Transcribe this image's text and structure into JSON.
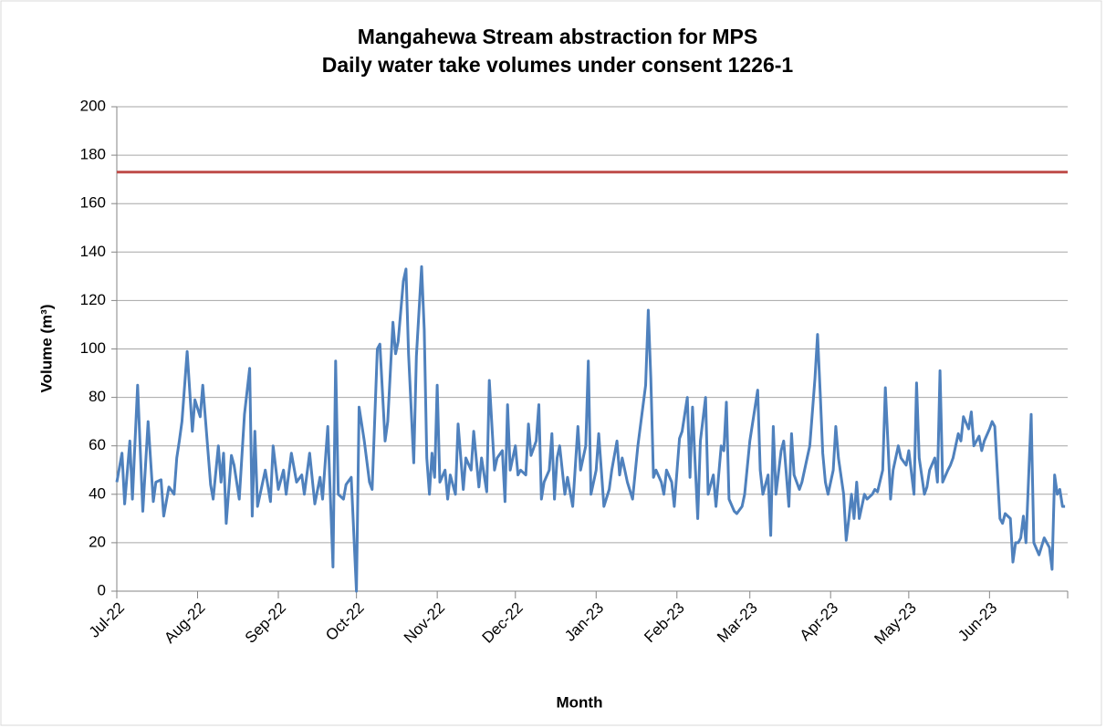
{
  "chart_data": {
    "type": "line",
    "title": "Mangahewa Stream abstraction for MPS",
    "subtitle": "Daily water take volumes under consent 1226-1",
    "y_label": "Volume (m³)",
    "x_label": "Month",
    "xlim": [
      0,
      365
    ],
    "xticks": [
      {
        "value": 0,
        "label": "Jul-22"
      },
      {
        "value": 31,
        "label": "Aug-22"
      },
      {
        "value": 62,
        "label": "Sep-22"
      },
      {
        "value": 92,
        "label": "Oct-22"
      },
      {
        "value": 123,
        "label": "Nov-22"
      },
      {
        "value": 153,
        "label": "Dec-22"
      },
      {
        "value": 184,
        "label": "Jan-23"
      },
      {
        "value": 215,
        "label": "Feb-23"
      },
      {
        "value": 243,
        "label": "Mar-23"
      },
      {
        "value": 274,
        "label": "Apr-23"
      },
      {
        "value": 304,
        "label": "May-23"
      },
      {
        "value": 335,
        "label": "Jun-23"
      }
    ],
    "ylim": [
      0,
      200
    ],
    "yticks": [
      0,
      20,
      40,
      60,
      80,
      100,
      120,
      140,
      160,
      180,
      200
    ],
    "grid": true,
    "reference_line": {
      "value": 173,
      "color": "#c0504d"
    },
    "x": [
      0,
      2,
      3,
      5,
      6,
      8,
      10,
      12,
      14,
      15,
      17,
      18,
      20,
      22,
      23,
      24,
      25,
      27,
      29,
      30,
      32,
      33,
      36,
      37,
      39,
      40,
      41,
      42,
      44,
      45,
      47,
      49,
      51,
      52,
      53,
      54,
      57,
      59,
      60,
      62,
      64,
      65,
      67,
      69,
      71,
      72,
      74,
      76,
      78,
      79,
      81,
      83,
      84,
      85,
      87,
      88,
      90,
      92,
      93,
      95,
      97,
      98,
      100,
      101,
      103,
      104,
      106,
      107,
      108,
      110,
      111,
      112,
      114,
      115,
      117,
      118,
      119,
      120,
      121,
      122,
      123,
      124,
      126,
      127,
      128,
      130,
      131,
      133,
      134,
      136,
      137,
      139,
      140,
      142,
      143,
      145,
      146,
      148,
      149,
      150,
      151,
      153,
      154,
      155,
      157,
      158,
      159,
      161,
      162,
      163,
      164,
      166,
      167,
      168,
      169,
      170,
      172,
      173,
      175,
      177,
      178,
      180,
      181,
      182,
      184,
      185,
      187,
      189,
      190,
      192,
      193,
      194,
      195,
      196,
      198,
      200,
      203,
      204,
      205,
      206,
      207,
      209,
      210,
      211,
      213,
      214,
      216,
      217,
      219,
      220,
      221,
      223,
      224,
      226,
      227,
      229,
      230,
      232,
      233,
      234,
      235,
      237,
      238,
      240,
      241,
      243,
      246,
      247,
      248,
      250,
      251,
      252,
      253,
      255,
      256,
      258,
      259,
      260,
      262,
      263,
      265,
      266,
      268,
      269,
      270,
      271,
      272,
      273,
      275,
      276,
      277,
      279,
      280,
      281,
      282,
      283,
      284,
      285,
      287,
      288,
      290,
      291,
      292,
      294,
      295,
      297,
      298,
      300,
      301,
      303,
      304,
      306,
      307,
      308,
      310,
      311,
      312,
      314,
      315,
      316,
      317,
      319,
      320,
      321,
      323,
      324,
      325,
      327,
      328,
      329,
      331,
      332,
      333,
      335,
      336,
      337,
      339,
      340,
      341,
      343,
      344,
      345,
      346,
      347,
      348,
      349,
      351,
      352,
      354,
      356,
      358,
      359,
      360,
      361,
      362,
      363,
      364
    ],
    "series": [
      {
        "color": "#4f81bd",
        "values": [
          45,
          57,
          36,
          62,
          38,
          85,
          33,
          70,
          37,
          45,
          46,
          31,
          43,
          40,
          55,
          62,
          70,
          99,
          66,
          79,
          72,
          85,
          44,
          38,
          60,
          45,
          57,
          28,
          56,
          52,
          38,
          73,
          92,
          31,
          66,
          35,
          50,
          37,
          60,
          42,
          50,
          40,
          57,
          45,
          48,
          40,
          57,
          36,
          47,
          38,
          68,
          10,
          95,
          40,
          38,
          44,
          47,
          0,
          76,
          62,
          45,
          42,
          100,
          102,
          62,
          70,
          111,
          98,
          103,
          128,
          133,
          98,
          53,
          97,
          134,
          108,
          55,
          40,
          57,
          47,
          85,
          45,
          50,
          38,
          48,
          40,
          69,
          42,
          55,
          50,
          66,
          43,
          55,
          41,
          87,
          50,
          55,
          58,
          37,
          77,
          50,
          60,
          48,
          50,
          48,
          69,
          56,
          62,
          77,
          38,
          45,
          50,
          65,
          38,
          55,
          60,
          40,
          47,
          35,
          68,
          50,
          60,
          95,
          40,
          50,
          65,
          35,
          42,
          50,
          62,
          48,
          55,
          50,
          45,
          38,
          60,
          85,
          116,
          88,
          47,
          50,
          45,
          40,
          50,
          45,
          35,
          63,
          66,
          80,
          47,
          76,
          30,
          62,
          80,
          40,
          48,
          35,
          60,
          58,
          78,
          38,
          33,
          32,
          35,
          40,
          62,
          83,
          50,
          40,
          48,
          23,
          68,
          40,
          58,
          62,
          35,
          65,
          48,
          42,
          45,
          55,
          60,
          88,
          106,
          82,
          57,
          45,
          40,
          50,
          68,
          55,
          40,
          21,
          30,
          40,
          30,
          45,
          30,
          40,
          38,
          40,
          42,
          41,
          50,
          84,
          38,
          50,
          60,
          55,
          52,
          58,
          40,
          86,
          55,
          40,
          43,
          50,
          55,
          45,
          91,
          45,
          50,
          52,
          55,
          65,
          62,
          72,
          67,
          74,
          60,
          64,
          58,
          62,
          67,
          70,
          68,
          30,
          28,
          32,
          30,
          12,
          20,
          20,
          22,
          31,
          20,
          73,
          20,
          15,
          22,
          18,
          9,
          48,
          40,
          42,
          35,
          35
        ]
      }
    ]
  }
}
